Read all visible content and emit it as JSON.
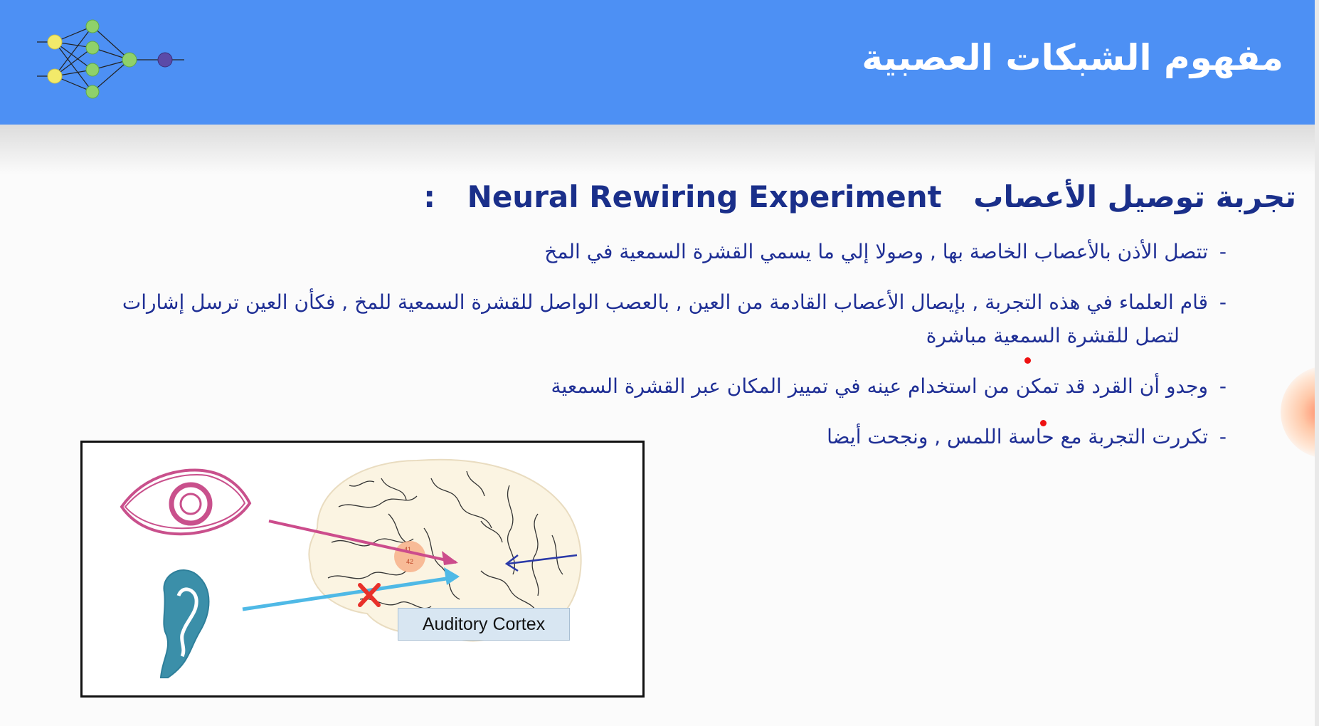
{
  "header": {
    "title": "مفهوم الشبكات العصبية",
    "logo_icon": "neural-network-icon",
    "background_color": "#4d90f4"
  },
  "heading": {
    "arabic": "تجربة توصيل الأعصاب",
    "english": "Neural Rewiring Experiment",
    "colon": ":",
    "color": "#1a2f8a"
  },
  "bullets": [
    {
      "text": "تتصل الأذن بالأعصاب  الخاصة بها , وصولا إلي ما يسمي القشرة السمعية في المخ"
    },
    {
      "text": "قام العلماء في هذه التجربة , بإيصال الأعصاب  القادمة من العين , بالعصب الواصل للقشرة السمعية للمخ , فكأن العين ترسل إشارات",
      "continuation": "لتصل للقشرة السمعية مباشرة"
    },
    {
      "text": "وجدو أن القرد قد تمكن من استخدام عينه في تمييز المكان عبر القشرة السمعية"
    },
    {
      "text": "تكررت التجربة مع حاسة اللمس , ونجحت أيضا"
    }
  ],
  "figure": {
    "label": "Auditory Cortex",
    "area_numbers": [
      "41",
      "42"
    ],
    "icons": [
      "eye-icon",
      "ear-icon",
      "brain-icon",
      "cross-mark-icon"
    ],
    "colors": {
      "eye": "#c9508c",
      "ear": "#2e7f9a",
      "eye_arrow": "#cc4c8c",
      "ear_arrow": "#4fb9e6",
      "cross": "#e8302a",
      "nerve_arrow": "#2b3aa8"
    }
  }
}
